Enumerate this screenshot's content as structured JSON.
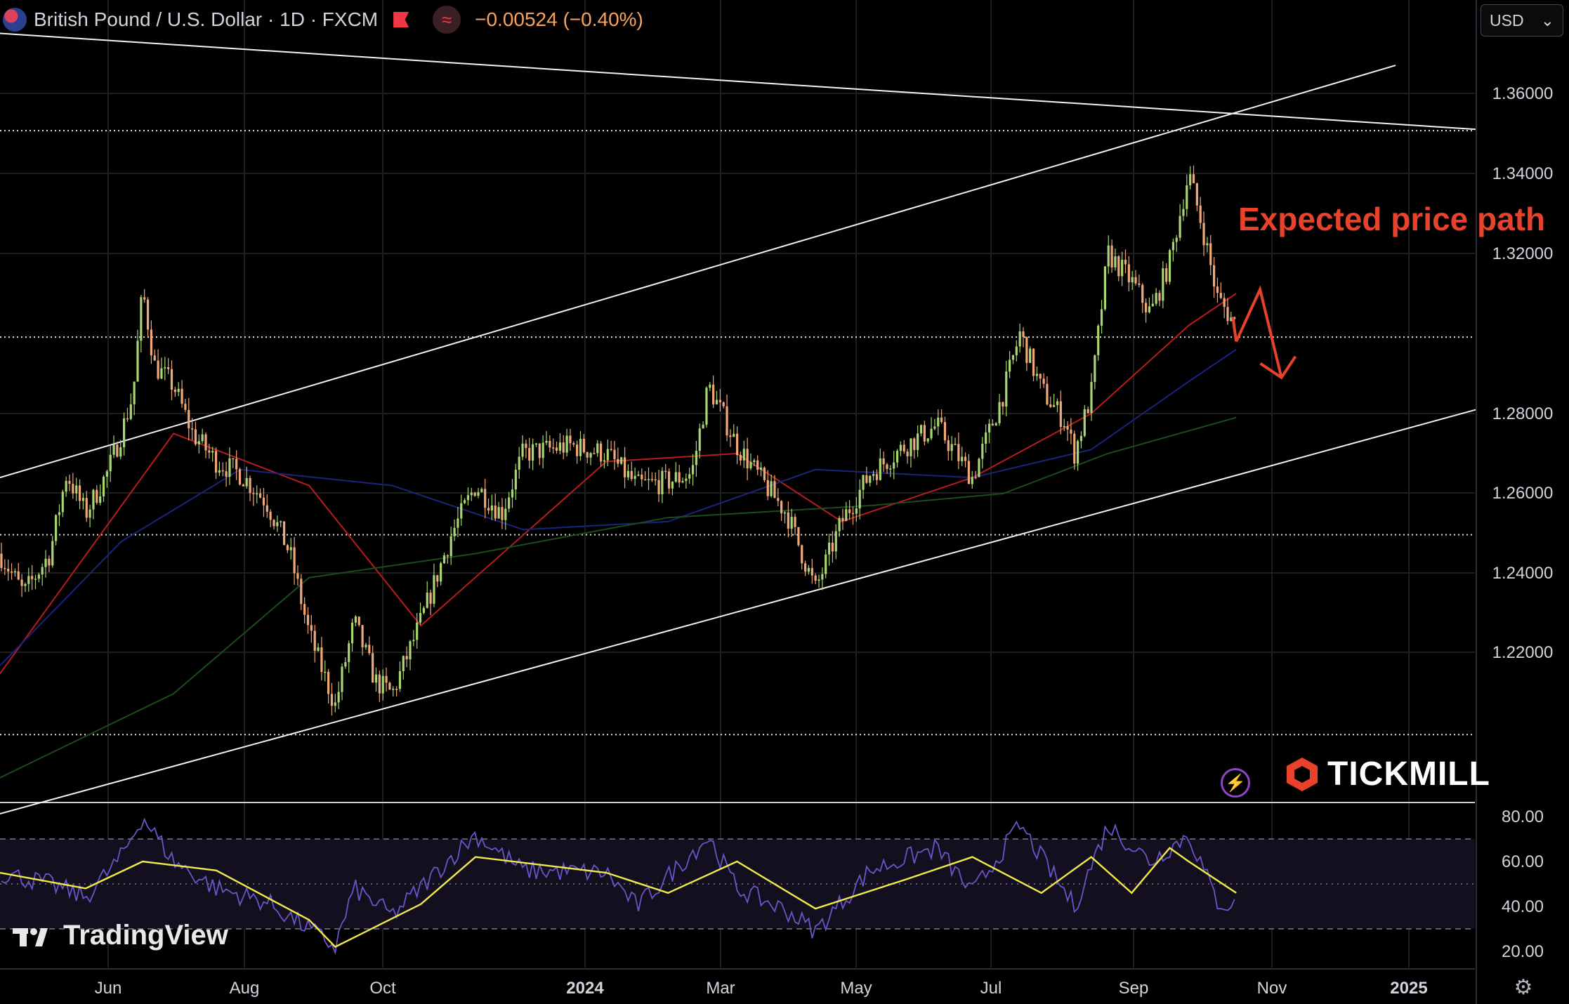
{
  "header": {
    "symbol": "British Pound / U.S. Dollar · 1D · FXCM",
    "indicator_glyph": "≈",
    "change": "−0.00524 (−0.40%)",
    "flag_icon": "uk-us-flag-icon"
  },
  "currency_select": {
    "value": "USD",
    "chevron": "⌄"
  },
  "annotation": {
    "text": "Expected price path",
    "color": "#e8412c"
  },
  "branding": {
    "broker": "TICKMILL",
    "platform": "TradingView"
  },
  "colors": {
    "background": "#000000",
    "up_candle": "#a8d672",
    "down_candle": "#f0a878",
    "ma_fast": "#b71c1c",
    "ma_mid": "#1a237e",
    "ma_slow": "#1b4d1b",
    "rsi": "#6a55c8",
    "rsi_ma": "#f2e94a",
    "arrow": "#e8412c"
  },
  "chart_data": [
    {
      "type": "candlestick",
      "instrument": "GBPUSD",
      "timeframe": "1D",
      "x_labels": [
        "Jun",
        "Aug",
        "Oct",
        "2024",
        "Mar",
        "May",
        "Jul",
        "Sep",
        "Nov",
        "2025"
      ],
      "y_ticks": [
        "1.36000",
        "1.34000",
        "1.32000",
        "1.28000",
        "1.26000",
        "1.24000",
        "1.22000"
      ],
      "ylim": [
        1.18,
        1.38
      ],
      "price_levels": [
        {
          "label": "1.35067",
          "value": 1.35067,
          "style": "dotted"
        },
        {
          "label": "1.29911",
          "value": 1.29911,
          "style": "dotted"
        },
        {
          "label": "1.24971",
          "value": 1.24971,
          "style": "dotted"
        },
        {
          "label": "1.19979",
          "value": 1.19979,
          "style": "dotted"
        }
      ],
      "close_path": [
        [
          "2023-05-15",
          1.245
        ],
        [
          "2023-05-25",
          1.235
        ],
        [
          "2023-06-05",
          1.245
        ],
        [
          "2023-06-12",
          1.265
        ],
        [
          "2023-06-20",
          1.255
        ],
        [
          "2023-06-29",
          1.265
        ],
        [
          "2023-07-05",
          1.275
        ],
        [
          "2023-07-10",
          1.285
        ],
        [
          "2023-07-14",
          1.311
        ],
        [
          "2023-07-19",
          1.292
        ],
        [
          "2023-07-27",
          1.287
        ],
        [
          "2023-08-04",
          1.275
        ],
        [
          "2023-08-14",
          1.268
        ],
        [
          "2023-08-24",
          1.265
        ],
        [
          "2023-09-04",
          1.258
        ],
        [
          "2023-09-14",
          1.245
        ],
        [
          "2023-09-22",
          1.225
        ],
        [
          "2023-10-03",
          1.207
        ],
        [
          "2023-10-11",
          1.228
        ],
        [
          "2023-10-20",
          1.213
        ],
        [
          "2023-10-27",
          1.21
        ],
        [
          "2023-11-08",
          1.228
        ],
        [
          "2023-11-21",
          1.25
        ],
        [
          "2023-12-01",
          1.262
        ],
        [
          "2023-12-12",
          1.255
        ],
        [
          "2023-12-21",
          1.27
        ],
        [
          "2024-01-10",
          1.272
        ],
        [
          "2024-01-25",
          1.27
        ],
        [
          "2024-02-07",
          1.262
        ],
        [
          "2024-02-20",
          1.263
        ],
        [
          "2024-03-01",
          1.265
        ],
        [
          "2024-03-08",
          1.287
        ],
        [
          "2024-03-20",
          1.272
        ],
        [
          "2024-04-01",
          1.262
        ],
        [
          "2024-04-10",
          1.255
        ],
        [
          "2024-04-22",
          1.236
        ],
        [
          "2024-05-03",
          1.253
        ],
        [
          "2024-05-15",
          1.265
        ],
        [
          "2024-05-30",
          1.272
        ],
        [
          "2024-06-12",
          1.277
        ],
        [
          "2024-06-27",
          1.264
        ],
        [
          "2024-07-10",
          1.285
        ],
        [
          "2024-07-17",
          1.3
        ],
        [
          "2024-07-26",
          1.286
        ],
        [
          "2024-08-05",
          1.278
        ],
        [
          "2024-08-09",
          1.27
        ],
        [
          "2024-08-16",
          1.285
        ],
        [
          "2024-08-23",
          1.32
        ],
        [
          "2024-09-02",
          1.313
        ],
        [
          "2024-09-10",
          1.305
        ],
        [
          "2024-09-18",
          1.318
        ],
        [
          "2024-09-26",
          1.34
        ],
        [
          "2024-10-02",
          1.326
        ],
        [
          "2024-10-08",
          1.309
        ],
        [
          "2024-10-16",
          1.302
        ]
      ],
      "moving_averages": [
        {
          "color": "#b71c1c",
          "points": [
            [
              "2023-05-15",
              1.215
            ],
            [
              "2023-07-27",
              1.275
            ],
            [
              "2023-09-22",
              1.262
            ],
            [
              "2023-11-08",
              1.227
            ],
            [
              "2024-01-25",
              1.268
            ],
            [
              "2024-03-20",
              1.27
            ],
            [
              "2024-05-03",
              1.253
            ],
            [
              "2024-06-27",
              1.264
            ],
            [
              "2024-08-16",
              1.28
            ],
            [
              "2024-09-26",
              1.302
            ],
            [
              "2024-10-16",
              1.31
            ]
          ]
        },
        {
          "color": "#1a237e",
          "points": [
            [
              "2023-05-15",
              1.217
            ],
            [
              "2023-07-05",
              1.248
            ],
            [
              "2023-08-24",
              1.266
            ],
            [
              "2023-10-27",
              1.262
            ],
            [
              "2023-12-21",
              1.251
            ],
            [
              "2024-02-20",
              1.253
            ],
            [
              "2024-04-22",
              1.266
            ],
            [
              "2024-06-27",
              1.264
            ],
            [
              "2024-08-16",
              1.271
            ],
            [
              "2024-09-26",
              1.288
            ],
            [
              "2024-10-16",
              1.296
            ]
          ]
        },
        {
          "color": "#1b4d1b",
          "points": [
            [
              "2023-05-15",
              1.189
            ],
            [
              "2023-07-27",
              1.21
            ],
            [
              "2023-09-22",
              1.239
            ],
            [
              "2023-12-01",
              1.245
            ],
            [
              "2024-02-20",
              1.254
            ],
            [
              "2024-05-15",
              1.257
            ],
            [
              "2024-07-10",
              1.26
            ],
            [
              "2024-08-23",
              1.27
            ],
            [
              "2024-10-16",
              1.279
            ]
          ]
        }
      ],
      "trend_lines": [
        {
          "name": "upper-channel",
          "from": [
            "2023-05-15",
            1.264
          ],
          "to": [
            "2024-12-22",
            1.367
          ]
        },
        {
          "name": "lower-channel",
          "from": [
            "2023-05-15",
            1.18
          ],
          "to": [
            "2025-01-25",
            1.281
          ]
        },
        {
          "name": "long-resistance",
          "from": [
            "2023-05-15",
            1.375
          ],
          "to": [
            "2025-01-25",
            1.351
          ]
        }
      ],
      "expected_path": [
        [
          "2024-10-16",
          1.298
        ],
        [
          "2024-10-26",
          1.311
        ],
        [
          "2024-11-04",
          1.289
        ]
      ]
    },
    {
      "type": "line",
      "name": "RSI",
      "y_ticks": [
        "80.00",
        "60.00",
        "40.00",
        "20.00"
      ],
      "ylim": [
        15,
        85
      ],
      "levels": [
        70,
        50,
        30
      ],
      "series": [
        {
          "points": [
            [
              "2023-05-15",
              55
            ],
            [
              "2023-06-05",
              50
            ],
            [
              "2023-06-20",
              44
            ],
            [
              "2023-07-05",
              62
            ],
            [
              "2023-07-14",
              80
            ],
            [
              "2023-07-27",
              60
            ],
            [
              "2023-08-14",
              48
            ],
            [
              "2023-09-04",
              42
            ],
            [
              "2023-09-22",
              30
            ],
            [
              "2023-10-03",
              22
            ],
            [
              "2023-10-11",
              48
            ],
            [
              "2023-10-27",
              36
            ],
            [
              "2023-11-21",
              62
            ],
            [
              "2023-12-01",
              72
            ],
            [
              "2023-12-21",
              56
            ],
            [
              "2024-01-25",
              55
            ],
            [
              "2024-02-07",
              40
            ],
            [
              "2024-03-08",
              71
            ],
            [
              "2024-03-20",
              48
            ],
            [
              "2024-04-10",
              38
            ],
            [
              "2024-04-22",
              29
            ],
            [
              "2024-05-15",
              56
            ],
            [
              "2024-06-12",
              66
            ],
            [
              "2024-06-27",
              46
            ],
            [
              "2024-07-17",
              76
            ],
            [
              "2024-08-09",
              40
            ],
            [
              "2024-08-23",
              76
            ],
            [
              "2024-09-10",
              60
            ],
            [
              "2024-09-26",
              72
            ],
            [
              "2024-10-08",
              42
            ],
            [
              "2024-10-16",
              40
            ]
          ]
        },
        {
          "points": [
            [
              "2023-05-15",
              55
            ],
            [
              "2023-06-20",
              48
            ],
            [
              "2023-07-14",
              60
            ],
            [
              "2023-08-14",
              56
            ],
            [
              "2023-09-22",
              34
            ],
            [
              "2023-10-03",
              22
            ],
            [
              "2023-11-08",
              41
            ],
            [
              "2023-12-01",
              62
            ],
            [
              "2024-01-25",
              55
            ],
            [
              "2024-02-20",
              46
            ],
            [
              "2024-03-20",
              60
            ],
            [
              "2024-04-22",
              39
            ],
            [
              "2024-05-30",
              52
            ],
            [
              "2024-06-27",
              62
            ],
            [
              "2024-07-26",
              46
            ],
            [
              "2024-08-16",
              62
            ],
            [
              "2024-09-02",
              46
            ],
            [
              "2024-09-18",
              66
            ],
            [
              "2024-09-26",
              60
            ],
            [
              "2024-10-16",
              46
            ]
          ]
        }
      ]
    }
  ]
}
